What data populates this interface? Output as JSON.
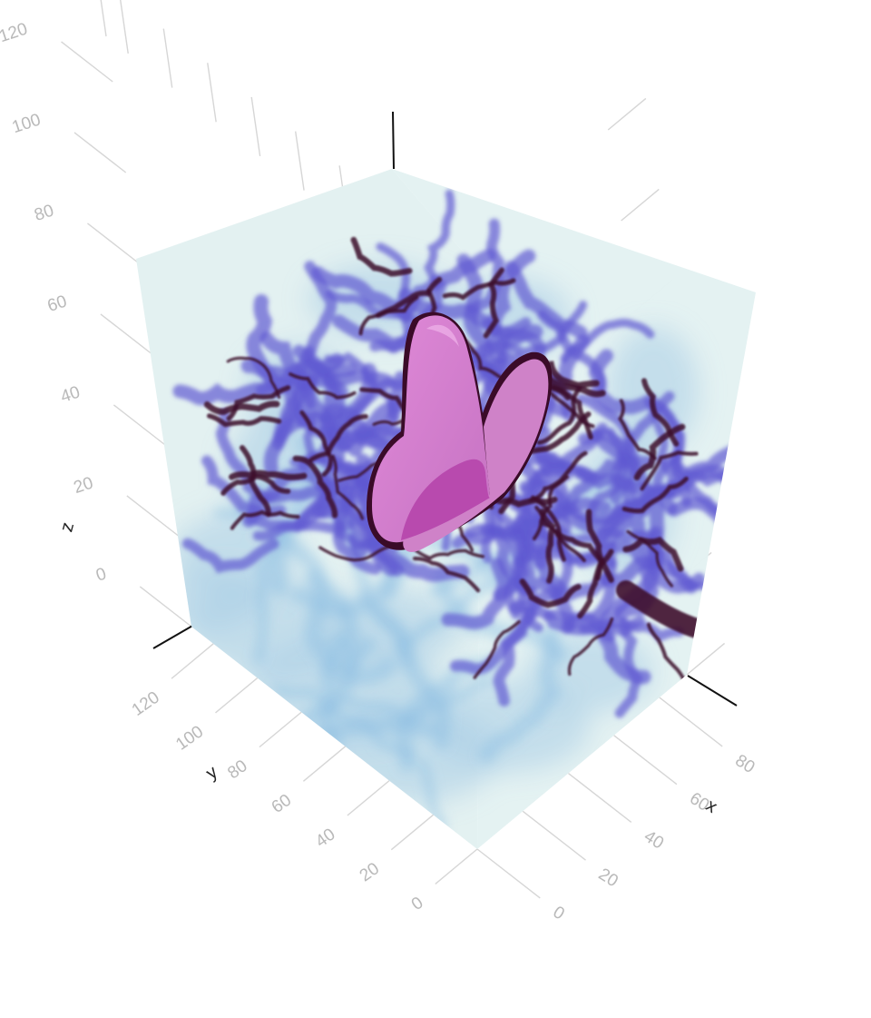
{
  "chart_data": {
    "type": "volume",
    "title": "",
    "axes": {
      "x": {
        "label": "x",
        "ticks": [
          "0",
          "20",
          "40",
          "60",
          "80"
        ],
        "range": [
          0,
          92
        ]
      },
      "y": {
        "label": "y",
        "ticks": [
          "0",
          "20",
          "40",
          "60",
          "80",
          "100",
          "120"
        ],
        "range": [
          0,
          130
        ]
      },
      "z": {
        "label": "z",
        "ticks": [
          "0",
          "20",
          "40",
          "60",
          "80",
          "100",
          "120"
        ],
        "range": [
          0,
          130
        ]
      }
    },
    "grid": true,
    "legend": "none",
    "colors": {
      "box_face": "#e3f1f1",
      "low_density": "#a9cde6",
      "mid_density": "#5f5ad2",
      "high_density": "#3d0b2c",
      "isosurface": "#d27fcb"
    }
  }
}
